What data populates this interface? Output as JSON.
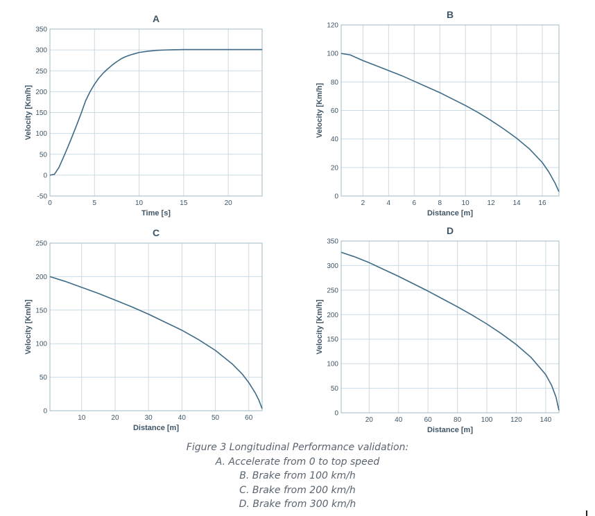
{
  "caption": {
    "line1": "Figure 3 Longitudinal Performance validation:",
    "line2": "A. Accelerate from 0 to top speed",
    "line3": "B. Brake from 100 km/h",
    "line4": "C. Brake from 200 km/h",
    "line5": "D. Brake from 300 km/h"
  },
  "colors": {
    "line": "#3d6a86",
    "grid": "#c9dbe3",
    "frame": "#9fb8c6",
    "text": "#3f5566"
  },
  "chart_data": [
    {
      "id": "A",
      "type": "line",
      "title": "A",
      "xlabel": "Time [s]",
      "ylabel": "Velocity [Km/h]",
      "xlim": [
        0,
        23.8
      ],
      "ylim": [
        -50,
        350
      ],
      "xticks": [
        0,
        5,
        10,
        15,
        20
      ],
      "yticks": [
        -50,
        0,
        50,
        100,
        150,
        200,
        250,
        300,
        350
      ],
      "grid": true,
      "x": [
        0,
        0.5,
        1,
        1.5,
        2,
        2.5,
        3,
        3.5,
        4,
        4.5,
        5,
        5.5,
        6,
        6.5,
        7,
        7.5,
        8,
        8.5,
        9,
        9.5,
        10,
        11,
        12,
        13,
        14,
        15,
        16,
        18,
        20,
        22,
        23.8
      ],
      "y": [
        0,
        2,
        18,
        42,
        67,
        93,
        120,
        148,
        178,
        200,
        218,
        233,
        245,
        255,
        264,
        272,
        279,
        284,
        288,
        291,
        294,
        297,
        299,
        300,
        300.5,
        301,
        301,
        301,
        301,
        301,
        301
      ]
    },
    {
      "id": "B",
      "type": "line",
      "title": "B",
      "xlabel": "Distance [m]",
      "ylabel": "Velocity [Km/h]",
      "xlim": [
        0.3,
        17.3
      ],
      "ylim": [
        0,
        120
      ],
      "xticks": [
        2,
        4,
        6,
        8,
        10,
        12,
        14,
        16
      ],
      "yticks": [
        0,
        20,
        40,
        60,
        80,
        100,
        120
      ],
      "grid": true,
      "x": [
        0.3,
        1,
        2,
        3,
        4,
        5,
        6,
        7,
        8,
        9,
        10,
        11,
        12,
        13,
        14,
        15,
        16,
        16.5,
        17,
        17.3
      ],
      "y": [
        100,
        99,
        95,
        91.5,
        88,
        84.5,
        80.5,
        76.5,
        72.5,
        68,
        63.5,
        58.5,
        53,
        47,
        40.5,
        33,
        23.5,
        17,
        9,
        3
      ]
    },
    {
      "id": "C",
      "type": "line",
      "title": "C",
      "xlabel": "Distance [m]",
      "ylabel": "Velocity [Km/h]",
      "xlim": [
        0.5,
        64
      ],
      "ylim": [
        0,
        250
      ],
      "xticks": [
        10,
        20,
        30,
        40,
        50,
        60
      ],
      "yticks": [
        0,
        50,
        100,
        150,
        200,
        250
      ],
      "grid": true,
      "x": [
        0.5,
        5,
        10,
        15,
        20,
        25,
        30,
        35,
        40,
        45,
        50,
        55,
        58,
        60,
        62,
        63,
        64
      ],
      "y": [
        200,
        193,
        184,
        175,
        165,
        155,
        144,
        132,
        120,
        106,
        90,
        70,
        55,
        42,
        26,
        16,
        3
      ]
    },
    {
      "id": "D",
      "type": "line",
      "title": "D",
      "xlabel": "Distance [m]",
      "ylabel": "Velocity [Km/h]",
      "xlim": [
        1,
        149
      ],
      "ylim": [
        0,
        350
      ],
      "xticks": [
        20,
        40,
        60,
        80,
        100,
        120,
        140
      ],
      "yticks": [
        0,
        50,
        100,
        150,
        200,
        250,
        300,
        350
      ],
      "grid": true,
      "x": [
        1,
        10,
        20,
        30,
        40,
        50,
        60,
        70,
        80,
        90,
        100,
        110,
        120,
        130,
        140,
        144,
        147,
        149
      ],
      "y": [
        327,
        318,
        306,
        292,
        278,
        263,
        248,
        232,
        216,
        199,
        181,
        161,
        139,
        113,
        78,
        56,
        32,
        5
      ]
    }
  ]
}
